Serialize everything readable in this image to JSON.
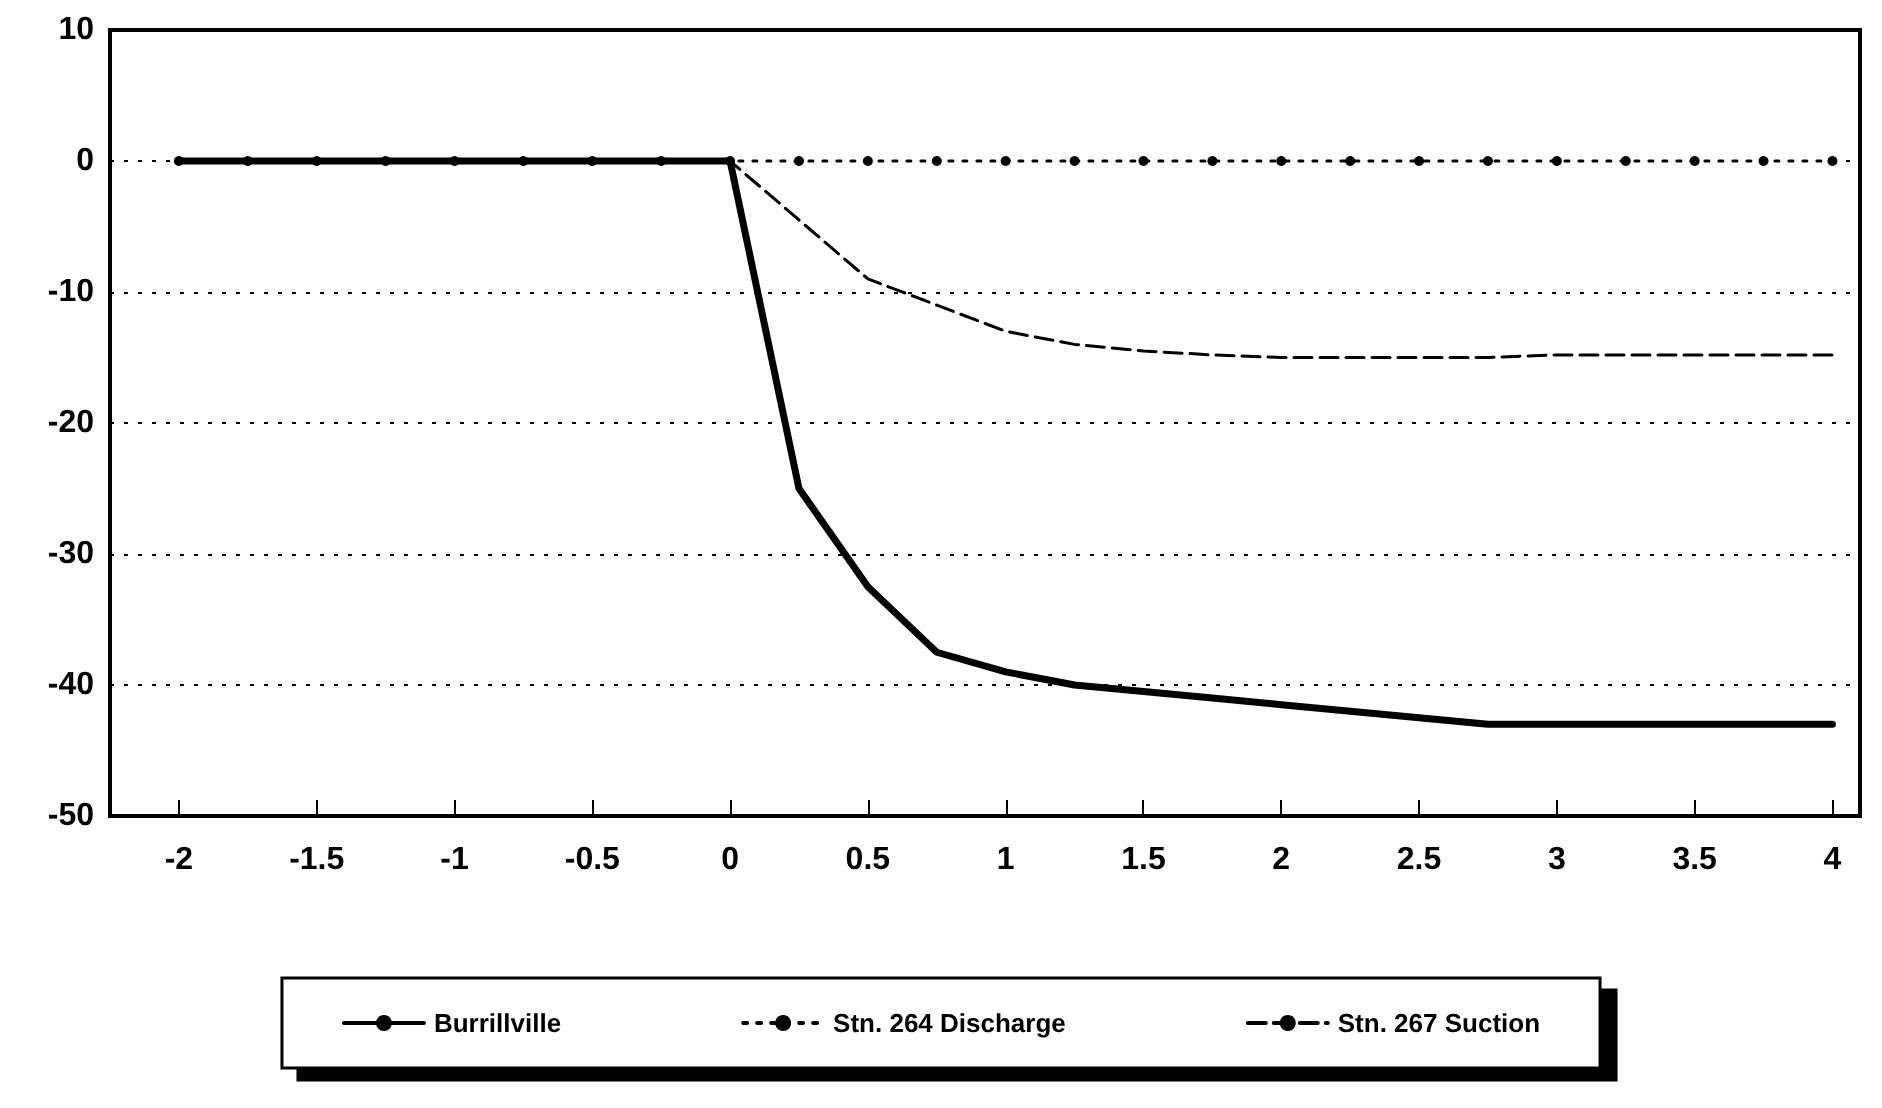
{
  "chart_data": {
    "type": "line",
    "x": [
      -2,
      -1.75,
      -1.5,
      -1.25,
      -1,
      -0.75,
      -0.5,
      -0.25,
      0,
      0.25,
      0.5,
      0.75,
      1,
      1.25,
      1.5,
      1.75,
      2,
      2.25,
      2.5,
      2.75,
      3,
      3.25,
      3.5,
      3.75,
      4
    ],
    "series": [
      {
        "name": "Burrillville",
        "color": "#000000",
        "line_style": "solid",
        "marker": "none",
        "values": [
          0,
          0,
          0,
          0,
          0,
          0,
          0,
          0,
          0,
          -25,
          -32.5,
          -37.5,
          -39,
          -40,
          -40.5,
          -41,
          -41.5,
          -42,
          -42.5,
          -43,
          -43,
          -43,
          -43,
          -43,
          -43
        ]
      },
      {
        "name": "Stn. 264 Discharge",
        "color": "#000000",
        "line_style": "dotted",
        "marker": "circle",
        "values": [
          0,
          0,
          0,
          0,
          0,
          0,
          0,
          0,
          0,
          0,
          0,
          0,
          0,
          0,
          0,
          0,
          0,
          0,
          0,
          0,
          0,
          0,
          0,
          0,
          0
        ]
      },
      {
        "name": "Stn. 267 Suction",
        "color": "#000000",
        "line_style": "dashed",
        "marker": "none",
        "values": [
          0,
          0,
          0,
          0,
          0,
          0,
          0,
          0,
          0,
          -4.5,
          -9,
          -11,
          -13,
          -14,
          -14.5,
          -14.8,
          -15,
          -15,
          -15,
          -15,
          -14.8,
          -14.8,
          -14.8,
          -14.8,
          -14.8
        ]
      }
    ],
    "xlim": [
      -2.25,
      4.1
    ],
    "xticks": [
      -2,
      -1.5,
      -1,
      -0.5,
      0,
      0.5,
      1,
      1.5,
      2,
      2.5,
      3,
      3.5,
      4
    ],
    "ylim": [
      -50,
      10
    ],
    "yticks": [
      -50,
      -40,
      -30,
      -20,
      -10,
      0,
      10
    ],
    "grid": "y",
    "legend": "bottom"
  }
}
